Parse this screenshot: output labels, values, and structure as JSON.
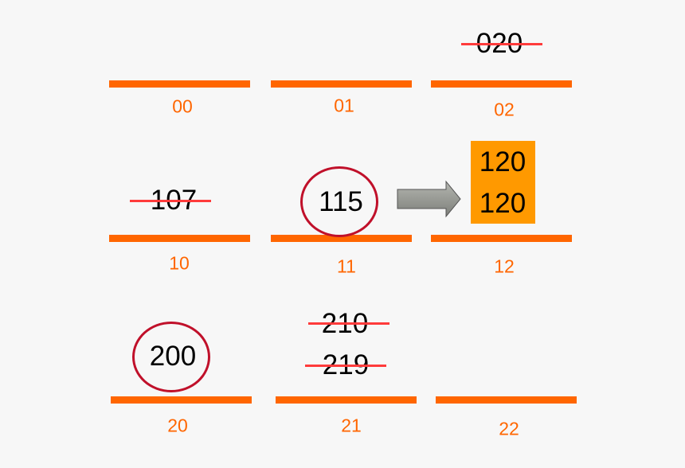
{
  "colors": {
    "bar": "#ff6600",
    "label": "#ff6600",
    "strike": "#ff3b3b",
    "circle": "#c0102a",
    "highlight_box": "#ff9900",
    "arrow": "#8a8c86"
  },
  "cells": {
    "c00": {
      "label": "00"
    },
    "c01": {
      "label": "01"
    },
    "c02": {
      "label": "02",
      "entries": [
        {
          "value": "020",
          "struck": true
        }
      ]
    },
    "c10": {
      "label": "10",
      "entries": [
        {
          "value": "107",
          "struck": true
        }
      ]
    },
    "c11": {
      "label": "11",
      "entries": [
        {
          "value": "115",
          "circled": true
        }
      ]
    },
    "c12": {
      "label": "12",
      "entries": [
        {
          "value": "120"
        },
        {
          "value": "120"
        }
      ],
      "highlighted": true
    },
    "c20": {
      "label": "20",
      "entries": [
        {
          "value": "200",
          "circled": true
        }
      ]
    },
    "c21": {
      "label": "21",
      "entries": [
        {
          "value": "210",
          "struck": true
        },
        {
          "value": "219",
          "struck": true
        }
      ]
    },
    "c22": {
      "label": "22"
    }
  },
  "arrow": {
    "icon": "right-arrow-icon",
    "from": "11",
    "to": "12"
  }
}
